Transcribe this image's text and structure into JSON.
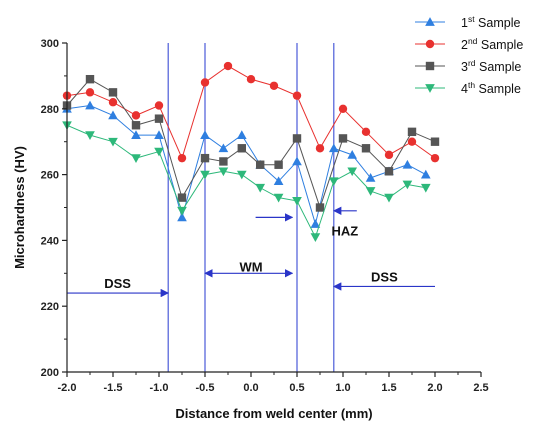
{
  "chart_data": {
    "type": "line",
    "xlabel": "Distance from weld center (mm)",
    "ylabel": "Microhardness (HV)",
    "xlim": [
      -2.0,
      2.5
    ],
    "ylim": [
      200,
      300
    ],
    "x_ticks": [
      -2.0,
      -1.5,
      -1.0,
      -0.5,
      0.0,
      0.5,
      1.0,
      1.5,
      2.0,
      2.5
    ],
    "y_ticks": [
      200,
      220,
      240,
      260,
      280,
      300
    ],
    "x_tick_labels": [
      "-2.0",
      "-1.5",
      "-1.0",
      "-0.5",
      "0.0",
      "0.5",
      "1.0",
      "1.5",
      "2.0",
      "2.5"
    ],
    "y_tick_labels": [
      "200",
      "220",
      "240",
      "260",
      "280",
      "300"
    ],
    "x_minor_ticks": [
      -1.75,
      -1.25,
      -0.75,
      -0.25,
      0.25,
      0.75,
      1.25,
      1.75,
      2.25
    ],
    "grid": false,
    "legend_position": "top-right",
    "x": [
      -2.0,
      -1.8,
      -1.6,
      -1.4,
      -1.2,
      -1.0,
      -0.8,
      -0.6,
      -0.4,
      -0.2,
      0.0,
      0.2,
      0.4,
      0.6,
      0.8,
      1.0,
      1.2,
      1.4,
      1.6,
      1.8,
      2.0
    ],
    "series": [
      {
        "name_base": "1",
        "name_sup": "st",
        "name_rest": " Sample",
        "color": "#2f7fe0",
        "marker": "triangle-up",
        "x": [
          -2.0,
          -1.75,
          -1.5,
          -1.25,
          -1.0,
          -0.75,
          -0.5,
          -0.3,
          -0.1,
          0.1,
          0.3,
          0.5,
          0.7,
          0.9,
          1.1,
          1.3,
          1.5,
          1.7,
          1.9
        ],
        "values": [
          280,
          281,
          278,
          272,
          272,
          247,
          272,
          268,
          272,
          263,
          258,
          264,
          245,
          268,
          266,
          259,
          261,
          263,
          260
        ]
      },
      {
        "name_base": "2",
        "name_sup": "nd",
        "name_rest": " Sample",
        "color": "#e8312f",
        "marker": "circle",
        "x": [
          -2.0,
          -1.75,
          -1.5,
          -1.25,
          -1.0,
          -0.75,
          -0.5,
          -0.25,
          0.0,
          0.25,
          0.5,
          0.75,
          1.0,
          1.25,
          1.5,
          1.75,
          2.0
        ],
        "values": [
          284,
          285,
          282,
          278,
          281,
          265,
          288,
          293,
          289,
          287,
          284,
          268,
          280,
          273,
          266,
          270,
          265
        ]
      },
      {
        "name_base": "3",
        "name_sup": "rd",
        "name_rest": " Sample",
        "color": "#555555",
        "marker": "square",
        "x": [
          -2.0,
          -1.75,
          -1.5,
          -1.25,
          -1.0,
          -0.75,
          -0.5,
          -0.3,
          -0.1,
          0.1,
          0.3,
          0.5,
          0.75,
          1.0,
          1.25,
          1.5,
          1.75,
          2.0
        ],
        "values": [
          281,
          289,
          285,
          275,
          277,
          253,
          265,
          264,
          268,
          263,
          263,
          271,
          250,
          271,
          268,
          261,
          273,
          270
        ]
      },
      {
        "name_base": "4",
        "name_sup": "th",
        "name_rest": " Sample",
        "color": "#2db87a",
        "marker": "triangle-down",
        "x": [
          -2.0,
          -1.75,
          -1.5,
          -1.25,
          -1.0,
          -0.75,
          -0.5,
          -0.3,
          -0.1,
          0.1,
          0.3,
          0.5,
          0.7,
          0.9,
          1.1,
          1.3,
          1.5,
          1.7,
          1.9
        ],
        "values": [
          275,
          272,
          270,
          265,
          267,
          249,
          260,
          261,
          260,
          256,
          253,
          252,
          241,
          258,
          261,
          255,
          253,
          257,
          256
        ]
      }
    ],
    "vertical_lines": [
      -0.9,
      -0.5,
      0.5,
      0.9
    ],
    "annotations": [
      {
        "text": "DSS",
        "x": -1.45,
        "y": 227,
        "id": "dss-left"
      },
      {
        "text": "WM",
        "x": 0.0,
        "y": 232,
        "id": "wm"
      },
      {
        "text": "HAZ",
        "x": 1.02,
        "y": 243,
        "id": "haz"
      },
      {
        "text": "DSS",
        "x": 1.45,
        "y": 229,
        "id": "dss-right"
      }
    ],
    "arrows": [
      {
        "id": "dss-left-arrow",
        "x1": -2.0,
        "x2": -0.9,
        "y": 224,
        "heads": "end"
      },
      {
        "id": "wm-arrow",
        "x1": -0.5,
        "x2": 0.45,
        "y": 230,
        "heads": "both"
      },
      {
        "id": "dss-right-arrow",
        "x1": 0.9,
        "x2": 2.0,
        "y": 226,
        "heads": "start"
      },
      {
        "id": "haz-arrow-left",
        "x1": 0.05,
        "x2": 0.45,
        "y": 247,
        "heads": "end"
      },
      {
        "id": "haz-arrow-right",
        "x1": 1.15,
        "x2": 0.9,
        "y": 249,
        "heads": "end"
      }
    ],
    "colors": {
      "axis": "#222222",
      "vertical_line": "#4b5bd8",
      "arrow": "#2a35c8"
    }
  }
}
